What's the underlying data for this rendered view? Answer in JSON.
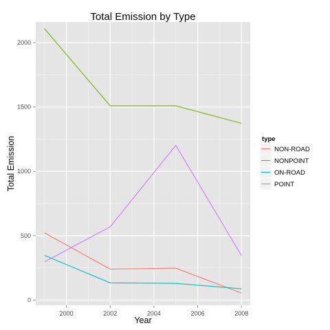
{
  "chart_data": {
    "type": "line",
    "title": "Total Emission by Type",
    "xlabel": "Year",
    "ylabel": "Total Emission",
    "x": [
      1999,
      2002,
      2005,
      2008
    ],
    "xlim": [
      1998.6,
      2008.4
    ],
    "ylim": [
      -40,
      2160
    ],
    "x_ticks": [
      2000,
      2002,
      2004,
      2006,
      2008
    ],
    "y_ticks": [
      0,
      500,
      1000,
      1500,
      2000
    ],
    "grid": true,
    "legend": {
      "title": "type",
      "placement": "right"
    },
    "series": [
      {
        "name": "NON-ROAD",
        "color": "#F8766D",
        "values": [
          522,
          241,
          248,
          55
        ]
      },
      {
        "name": "NONPOINT",
        "color": "#7CAE00",
        "values": [
          2108,
          1509,
          1509,
          1373
        ]
      },
      {
        "name": "ON-ROAD",
        "color": "#00BFC4",
        "values": [
          347,
          134,
          130,
          88
        ]
      },
      {
        "name": "POINT",
        "color": "#C77CFF",
        "values": [
          297,
          569,
          1202,
          345
        ]
      }
    ]
  }
}
